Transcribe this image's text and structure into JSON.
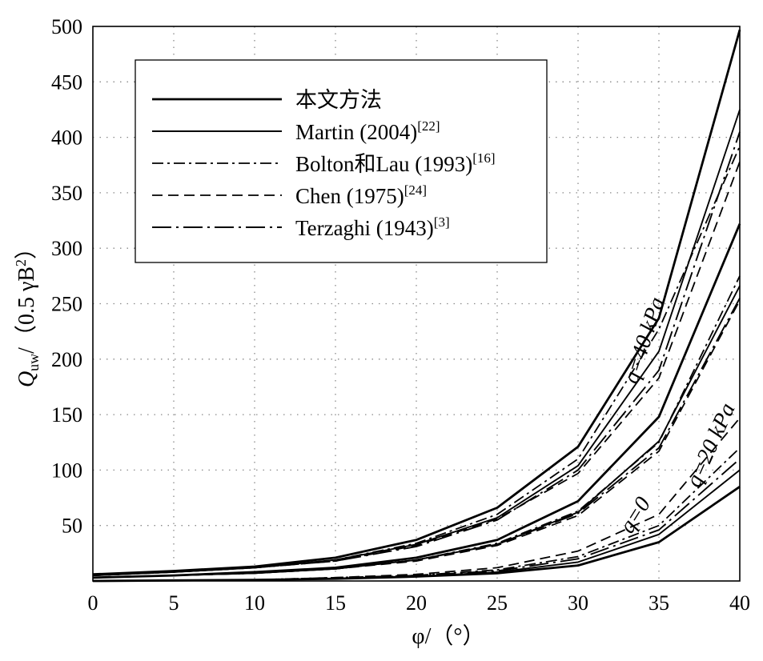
{
  "chart_data": {
    "type": "line",
    "title": "",
    "xlabel": "φ/（°）",
    "ylabel_parts": {
      "q": "Q",
      "sub": "uw",
      "rest": "/（0.5 γB",
      "sup": "2",
      "close": "）"
    },
    "xlim": [
      0,
      40
    ],
    "ylim": [
      0,
      500
    ],
    "grid": true,
    "legend_placement": "top-left",
    "x": [
      0,
      5,
      10,
      15,
      20,
      25,
      30,
      35,
      40
    ],
    "x_ticks": [
      "0",
      "5",
      "10",
      "15",
      "20",
      "25",
      "30",
      "35",
      "40"
    ],
    "y_ticks": [
      "0",
      "50",
      "100",
      "150",
      "200",
      "250",
      "300",
      "350",
      "400",
      "450",
      "500"
    ],
    "legend": [
      {
        "label": "本文方法",
        "ref": "",
        "style": "solid-bold"
      },
      {
        "label": "Martin (2004)",
        "ref": "[22]",
        "style": "solid"
      },
      {
        "label": "Bolton和Lau (1993)",
        "ref": "[16]",
        "style": "dash-dot"
      },
      {
        "label": "Chen (1975)",
        "ref": "[24]",
        "style": "dashed"
      },
      {
        "label": "Terzaghi (1943)",
        "ref": "[3]",
        "style": "long-dash-dot"
      }
    ],
    "annotations": [
      {
        "text": "q=40 kPa",
        "x": 34.5,
        "y": 215
      },
      {
        "text": "q=20 kPa",
        "x": 38.6,
        "y": 120
      },
      {
        "text": "q=0",
        "x": 33.9,
        "y": 56
      }
    ],
    "series": [
      {
        "group": "q=40 kPa",
        "method": "本文方法",
        "style": "solid-bold",
        "values": [
          6,
          9,
          13,
          21,
          37,
          66,
          121,
          237,
          497
        ]
      },
      {
        "group": "q=40 kPa",
        "method": "Martin (2004)",
        "style": "solid",
        "values": [
          5,
          8,
          12,
          19,
          33,
          57,
          104,
          207,
          425
        ]
      },
      {
        "group": "q=40 kPa",
        "method": "Bolton和Lau (1993)",
        "style": "dash-dot",
        "values": [
          5,
          8,
          12,
          19,
          34,
          60,
          110,
          227,
          392
        ]
      },
      {
        "group": "q=40 kPa",
        "method": "Chen (1975)",
        "style": "dashed",
        "values": [
          5,
          8,
          12,
          18,
          32,
          56,
          97,
          183,
          378
        ]
      },
      {
        "group": "q=40 kPa",
        "method": "Terzaghi (1943)",
        "style": "long-dash-dot",
        "values": [
          5,
          8,
          12,
          18,
          31,
          55,
          100,
          190,
          405
        ]
      },
      {
        "group": "q=20 kPa",
        "method": "本文方法",
        "style": "solid-bold",
        "values": [
          3,
          5,
          8,
          12,
          21,
          37,
          72,
          148,
          322
        ]
      },
      {
        "group": "q=20 kPa",
        "method": "Martin (2004)",
        "style": "solid",
        "values": [
          3,
          5,
          7,
          11,
          19,
          33,
          62,
          126,
          266
        ]
      },
      {
        "group": "q=20 kPa",
        "method": "Bolton和Lau (1993)",
        "style": "dash-dot",
        "values": [
          3,
          5,
          7,
          11,
          19,
          34,
          63,
          125,
          275
        ]
      },
      {
        "group": "q=20 kPa",
        "method": "Chen (1975)",
        "style": "dashed",
        "values": [
          3,
          5,
          7,
          11,
          18,
          32,
          59,
          117,
          253
        ]
      },
      {
        "group": "q=20 kPa",
        "method": "Terzaghi (1943)",
        "style": "long-dash-dot",
        "values": [
          3,
          5,
          7,
          11,
          19,
          33,
          61,
          120,
          255
        ]
      },
      {
        "group": "q=0",
        "method": "本文方法",
        "style": "solid-bold",
        "values": [
          0,
          0.5,
          1,
          2,
          4,
          7,
          14,
          35,
          85
        ]
      },
      {
        "group": "q=0",
        "method": "Martin (2004)",
        "style": "solid",
        "values": [
          0,
          0.5,
          1,
          2,
          4,
          8,
          17,
          42,
          100
        ]
      },
      {
        "group": "q=0",
        "method": "Bolton和Lau (1993)",
        "style": "dash-dot",
        "values": [
          0,
          0.5,
          1,
          3,
          5,
          10,
          22,
          50,
          120
        ]
      },
      {
        "group": "q=0",
        "method": "Chen (1975)",
        "style": "dashed",
        "values": [
          0,
          0.5,
          1,
          3,
          6,
          12,
          27,
          60,
          147
        ]
      },
      {
        "group": "q=0",
        "method": "Terzaghi (1943)",
        "style": "long-dash-dot",
        "values": [
          0,
          0.5,
          1,
          2,
          5,
          9,
          20,
          46,
          110
        ]
      }
    ]
  }
}
